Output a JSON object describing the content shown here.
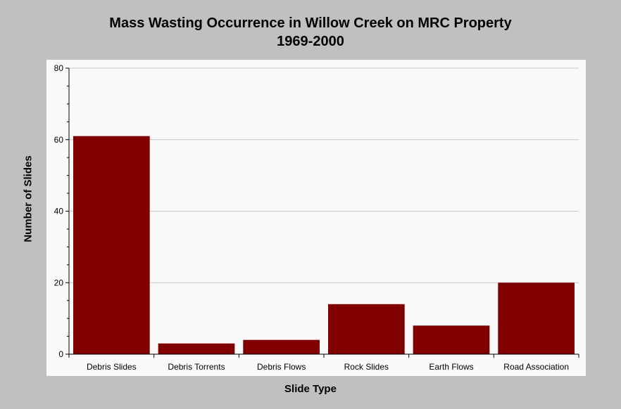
{
  "chart_data": {
    "type": "bar",
    "title": "Mass Wasting Occurrence in Willow Creek on MRC Property",
    "subtitle": "1969-2000",
    "xlabel": "Slide Type",
    "ylabel": "Number of Slides",
    "categories": [
      "Debris Slides",
      "Debris Torrents",
      "Debris Flows",
      "Rock Slides",
      "Earth Flows",
      "Road Association"
    ],
    "values": [
      61,
      3,
      4,
      14,
      8,
      20
    ],
    "ylim": [
      0,
      80
    ],
    "yticks": [
      "0",
      "20",
      "40",
      "60",
      "80"
    ],
    "grid": true,
    "bar_color": "#800000",
    "plot_background": "#fafafa",
    "background": "#c0c0c0"
  }
}
